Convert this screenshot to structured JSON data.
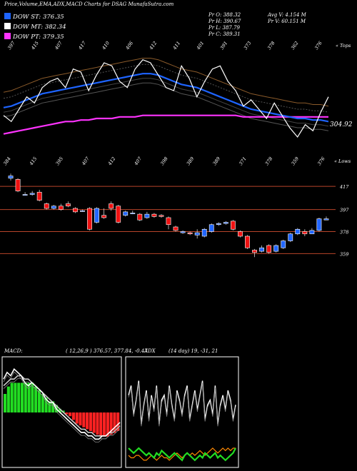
{
  "header": {
    "title": "Price,Volume,EMA,ADX,MACD Charts for DSAG MunafaSutra.com"
  },
  "legend": [
    {
      "label": "DOW ST: 376.35",
      "color": "#1e64ff"
    },
    {
      "label": "DOW MT: 382.34",
      "color": "#ffffff"
    },
    {
      "label": "DOW PT: 379.35",
      "color": "#ff33ff"
    }
  ],
  "stats": {
    "pr_o": "Pr  O: 388.32",
    "pr_h": "Pr  H: 390.67",
    "pr_l": "Pr  L: 387.79",
    "pr_c": "Pr  C: 389.31",
    "avg_v": "Avg V: 4.154  M",
    "pr_v": "Pr  V: 60.151 M"
  },
  "chart_data": [
    {
      "type": "line",
      "name": "upper-price-ema",
      "top_axis_label": "« Tops",
      "top_tick_labels": [
        "397",
        "415",
        "407",
        "417",
        "410",
        "406",
        "412",
        "411",
        "401",
        "391",
        "373",
        "378",
        "362",
        "376"
      ],
      "bottom_axis_label": "« Lows",
      "bottom_tick_labels": [
        "384",
        "415",
        "395",
        "407",
        "412",
        "407",
        "398",
        "389",
        "389",
        "371",
        "378",
        "359",
        "376"
      ],
      "last_value_label": "304.92",
      "series": [
        {
          "color": "#ffffff",
          "values": [
            380,
            376,
            384,
            392,
            388,
            398,
            402,
            404,
            398,
            410,
            408,
            396,
            406,
            414,
            412,
            402,
            398,
            410,
            416,
            414,
            406,
            398,
            396,
            412,
            404,
            392,
            402,
            410,
            412,
            402,
            396,
            386,
            390,
            384,
            378,
            388,
            380,
            372,
            366,
            374,
            370,
            382,
            392
          ]
        },
        {
          "color": "#1e64ff",
          "values": [
            385,
            386,
            388,
            390,
            392,
            394,
            395,
            396,
            397,
            398,
            399,
            400,
            401,
            402,
            403,
            404,
            405,
            406,
            407,
            407,
            406,
            404,
            402,
            400,
            399,
            398,
            396,
            394,
            392,
            390,
            388,
            386,
            384,
            383,
            382,
            381,
            380,
            379,
            378,
            378,
            377,
            377,
            376
          ]
        },
        {
          "color": "#ff33ff",
          "values": [
            368,
            369,
            370,
            371,
            372,
            373,
            374,
            375,
            376,
            376,
            377,
            377,
            378,
            378,
            378,
            379,
            379,
            379,
            380,
            380,
            380,
            380,
            380,
            380,
            380,
            380,
            380,
            380,
            380,
            380,
            380,
            379,
            379,
            379,
            379,
            379,
            379,
            379,
            379,
            379,
            379,
            379,
            379
          ]
        }
      ]
    },
    {
      "type": "candlestick",
      "name": "main-price-candles",
      "levels": [
        417,
        397,
        378,
        359
      ],
      "candles": [
        {
          "o": 424,
          "c": 426,
          "h": 428,
          "l": 422
        },
        {
          "o": 423,
          "c": 413,
          "h": 424,
          "l": 412
        },
        {
          "o": 410,
          "c": 410,
          "h": 412,
          "l": 409
        },
        {
          "o": 410,
          "c": 411,
          "h": 413,
          "l": 409
        },
        {
          "o": 412,
          "c": 405,
          "h": 414,
          "l": 404
        },
        {
          "o": 402,
          "c": 398,
          "h": 403,
          "l": 397
        },
        {
          "o": 398,
          "c": 400,
          "h": 401,
          "l": 397
        },
        {
          "o": 400,
          "c": 397,
          "h": 402,
          "l": 396
        },
        {
          "o": 402,
          "c": 400,
          "h": 404,
          "l": 399
        },
        {
          "o": 398,
          "c": 395,
          "h": 399,
          "l": 394
        },
        {
          "o": 396,
          "c": 396,
          "h": 397,
          "l": 395
        },
        {
          "o": 398,
          "c": 380,
          "h": 399,
          "l": 379
        },
        {
          "o": 386,
          "c": 398,
          "h": 399,
          "l": 385
        },
        {
          "o": 392,
          "c": 390,
          "h": 398,
          "l": 389
        },
        {
          "o": 402,
          "c": 398,
          "h": 404,
          "l": 396
        },
        {
          "o": 400,
          "c": 386,
          "h": 401,
          "l": 385
        },
        {
          "o": 392,
          "c": 395,
          "h": 396,
          "l": 391
        },
        {
          "o": 394,
          "c": 394,
          "h": 396,
          "l": 393
        },
        {
          "o": 393,
          "c": 388,
          "h": 394,
          "l": 387
        },
        {
          "o": 390,
          "c": 393,
          "h": 395,
          "l": 389
        },
        {
          "o": 393,
          "c": 391,
          "h": 394,
          "l": 390
        },
        {
          "o": 392,
          "c": 391,
          "h": 393,
          "l": 390
        },
        {
          "o": 390,
          "c": 384,
          "h": 391,
          "l": 380
        },
        {
          "o": 382,
          "c": 379,
          "h": 383,
          "l": 378
        },
        {
          "o": 377,
          "c": 378,
          "h": 379,
          "l": 376
        },
        {
          "o": 377,
          "c": 376,
          "h": 378,
          "l": 375
        },
        {
          "o": 375,
          "c": 377,
          "h": 380,
          "l": 372
        },
        {
          "o": 374,
          "c": 380,
          "h": 381,
          "l": 373
        },
        {
          "o": 378,
          "c": 384,
          "h": 385,
          "l": 377
        },
        {
          "o": 384,
          "c": 385,
          "h": 386,
          "l": 383
        },
        {
          "o": 385,
          "c": 386,
          "h": 387,
          "l": 384
        },
        {
          "o": 387,
          "c": 380,
          "h": 388,
          "l": 379
        },
        {
          "o": 378,
          "c": 374,
          "h": 379,
          "l": 373
        },
        {
          "o": 374,
          "c": 364,
          "h": 375,
          "l": 363
        },
        {
          "o": 362,
          "c": 360,
          "h": 363,
          "l": 356
        },
        {
          "o": 361,
          "c": 364,
          "h": 366,
          "l": 360
        },
        {
          "o": 366,
          "c": 360,
          "h": 367,
          "l": 359
        },
        {
          "o": 361,
          "c": 366,
          "h": 367,
          "l": 360
        },
        {
          "o": 364,
          "c": 370,
          "h": 371,
          "l": 363
        },
        {
          "o": 370,
          "c": 376,
          "h": 377,
          "l": 369
        },
        {
          "o": 376,
          "c": 380,
          "h": 381,
          "l": 375
        },
        {
          "o": 378,
          "c": 376,
          "h": 380,
          "l": 374
        },
        {
          "o": 376,
          "c": 379,
          "h": 381,
          "l": 376
        },
        {
          "o": 379,
          "c": 389,
          "h": 390,
          "l": 378
        },
        {
          "o": 388,
          "c": 389,
          "h": 391,
          "l": 388
        }
      ]
    },
    {
      "type": "bar",
      "name": "macd-panel",
      "label": "MACD:",
      "params": "( 12,26,9 ) 376.57,  377.84, -0.47",
      "histogram": [
        5,
        7,
        8,
        8,
        8,
        8,
        8,
        8,
        8,
        7,
        6,
        5,
        4,
        3,
        3,
        2,
        1,
        0.5,
        -0.5,
        -1,
        -2,
        -3,
        -3.5,
        -4,
        -4.5,
        -5,
        -5.5,
        -6,
        -6.5,
        -6.5,
        -6.5,
        -6,
        -5.5,
        -5
      ],
      "macd": [
        10,
        12,
        11,
        13,
        12,
        11,
        9,
        8,
        9,
        8,
        7,
        6,
        4,
        3,
        3,
        1,
        0,
        -1,
        -2,
        -3,
        -4,
        -5,
        -6,
        -6,
        -7,
        -7,
        -8,
        -8,
        -7,
        -7,
        -6,
        -5,
        -4,
        -3
      ],
      "signal": [
        8,
        9,
        10,
        10,
        11,
        11,
        10,
        10,
        9,
        8,
        7,
        6,
        5,
        4,
        3,
        2,
        1,
        0,
        -1,
        -2,
        -3,
        -4,
        -5,
        -5,
        -6,
        -6,
        -7,
        -7,
        -7,
        -7,
        -6,
        -6,
        -5,
        -4
      ]
    },
    {
      "type": "line",
      "name": "adx-panel",
      "label": "ADX",
      "params": "(14  day) 19,  -31,  21",
      "series": [
        {
          "color": "#ffffff",
          "values": [
            30,
            34,
            22,
            28,
            36,
            18,
            26,
            32,
            20,
            30,
            24,
            34,
            18,
            28,
            30,
            22,
            34,
            26,
            20,
            32,
            28,
            22,
            30,
            34,
            20,
            26,
            32,
            24,
            30,
            36,
            20,
            26,
            28,
            22,
            34,
            18,
            26,
            30,
            24,
            32,
            28,
            20,
            26
          ]
        },
        {
          "color": "#22dd22",
          "values": [
            8,
            7,
            6,
            7,
            8,
            7,
            6,
            5,
            6,
            5,
            4,
            6,
            5,
            7,
            6,
            5,
            4,
            5,
            6,
            5,
            4,
            3,
            5,
            6,
            5,
            4,
            3,
            4,
            5,
            4,
            6,
            5,
            4,
            5,
            6,
            4,
            5,
            4,
            3,
            4,
            5,
            6,
            8
          ]
        },
        {
          "color": "#ff8800",
          "values": [
            5,
            4,
            4,
            5,
            5,
            4,
            3,
            3,
            4,
            5,
            4,
            3,
            4,
            5,
            4,
            4,
            3,
            4,
            5,
            6,
            5,
            4,
            5,
            6,
            5,
            6,
            5,
            6,
            7,
            6,
            5,
            6,
            7,
            8,
            7,
            6,
            7,
            8,
            7,
            8,
            7,
            8,
            8
          ]
        }
      ]
    }
  ]
}
